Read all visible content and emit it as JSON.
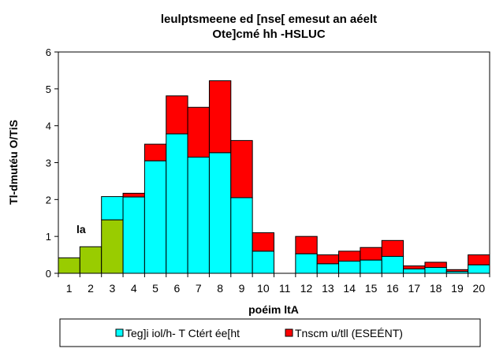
{
  "chart_data": {
    "type": "bar",
    "stacked": true,
    "title_lines": [
      "leulptsmeene ed [nse[ emesut an aéelt",
      "Ote]cmé hh -HSLUC"
    ],
    "xlabel": "poéim ltA",
    "ylabel": "Tl-dmutéu O/TiS",
    "ylim": [
      0,
      6
    ],
    "yticks": [
      0,
      1,
      2,
      3,
      4,
      5,
      6
    ],
    "grid": false,
    "legend_position": "bottom",
    "categories": [
      "1",
      "2",
      "3",
      "4",
      "5",
      "6",
      "7",
      "8",
      "9",
      "10",
      "11",
      "12",
      "13",
      "14",
      "15",
      "16",
      "17",
      "18",
      "19",
      "20"
    ],
    "annotation": "la",
    "series": [
      {
        "name": "Teg]i iol/h- T Ctért ée[ht",
        "color": "#00ffff",
        "values": [
          0,
          0,
          0,
          2.07,
          3.05,
          3.78,
          3.15,
          3.27,
          2.05,
          0.6,
          0,
          0.53,
          0.26,
          0.33,
          0.36,
          0.46,
          0.12,
          0.16,
          0.05,
          0.23
        ]
      },
      {
        "name": "Tnscm u/tll (ESEÉNT)",
        "color": "#ff0000",
        "values": [
          0,
          0,
          0,
          0.1,
          0.45,
          1.03,
          1.35,
          1.95,
          1.55,
          0.5,
          0,
          0.47,
          0.24,
          0.27,
          0.34,
          0.43,
          0.08,
          0.14,
          0.05,
          0.27
        ]
      },
      {
        "name": "",
        "color": "#99cc00",
        "values": [
          0.42,
          0.72,
          1.45,
          0,
          0,
          0,
          0,
          0,
          0,
          0,
          0,
          0,
          0,
          0,
          0,
          0,
          0,
          0,
          0,
          0
        ]
      },
      {
        "name": "",
        "color": "#00ffff",
        "values": [
          0,
          0,
          0.63,
          0,
          0,
          0,
          0,
          0,
          0,
          0,
          0,
          0,
          0,
          0,
          0,
          0,
          0,
          0,
          0,
          0
        ]
      }
    ]
  }
}
